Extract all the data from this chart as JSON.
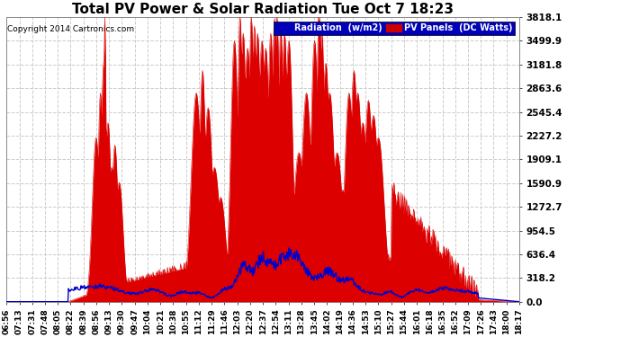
{
  "title": "Total PV Power & Solar Radiation Tue Oct 7 18:23",
  "copyright": "Copyright 2014 Cartronics.com",
  "legend_labels": [
    "Radiation  (w/m2)",
    "PV Panels  (DC Watts)"
  ],
  "legend_colors_bg": [
    "#0000bb",
    "#cc0000"
  ],
  "ymax": 3818.1,
  "ymin": 0.0,
  "yticks": [
    0.0,
    318.2,
    636.4,
    954.5,
    1272.7,
    1590.9,
    1909.1,
    2227.2,
    2545.4,
    2863.6,
    3181.8,
    3499.9,
    3818.1
  ],
  "bg_color": "#ffffff",
  "plot_bg_color": "#ffffff",
  "grid_color": "#cccccc",
  "pv_color": "#dd0000",
  "radiation_color": "#0000cc",
  "x_tick_labels": [
    "06:56",
    "07:13",
    "07:31",
    "07:48",
    "08:05",
    "08:22",
    "08:39",
    "08:56",
    "09:13",
    "09:30",
    "09:47",
    "10:04",
    "10:21",
    "10:38",
    "10:55",
    "11:12",
    "11:29",
    "11:46",
    "12:03",
    "12:20",
    "12:37",
    "12:54",
    "13:11",
    "13:28",
    "13:45",
    "14:02",
    "14:19",
    "14:36",
    "14:53",
    "15:10",
    "15:27",
    "15:44",
    "16:01",
    "16:18",
    "16:35",
    "16:52",
    "17:09",
    "17:26",
    "17:43",
    "18:00",
    "18:17"
  ]
}
